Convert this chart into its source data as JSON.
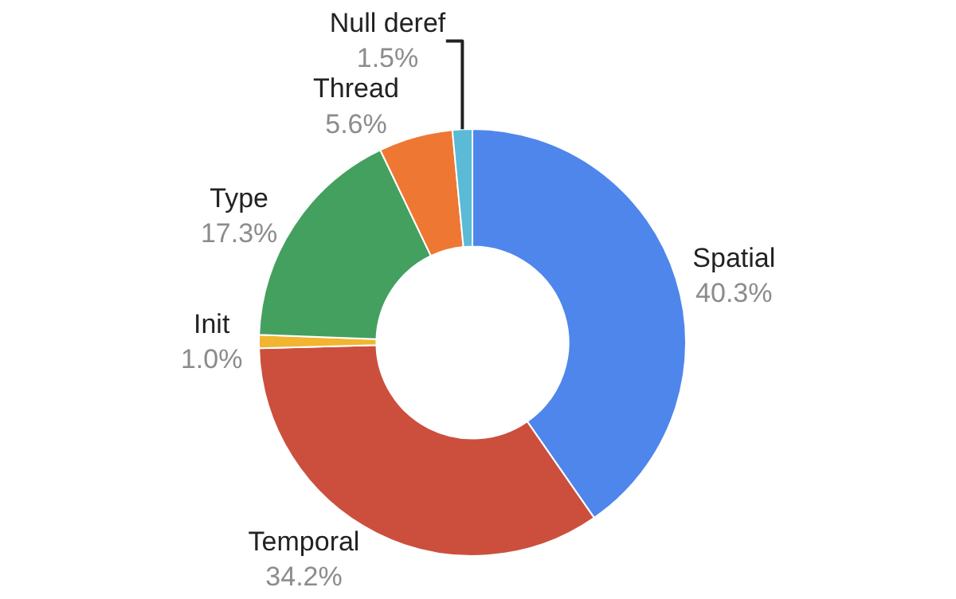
{
  "chart_data": {
    "type": "donut",
    "categories": [
      "Spatial",
      "Temporal",
      "Init",
      "Type",
      "Thread",
      "Null deref"
    ],
    "values": [
      40.3,
      34.2,
      1.0,
      17.3,
      5.6,
      1.5
    ],
    "value_labels": [
      "40.3%",
      "34.2%",
      "1.0%",
      "17.3%",
      "5.6%",
      "1.5%"
    ],
    "colors": [
      "#4f86ec",
      "#cc4f3d",
      "#f2b531",
      "#44a05e",
      "#ee7733",
      "#5bbad5"
    ],
    "legend": false
  }
}
